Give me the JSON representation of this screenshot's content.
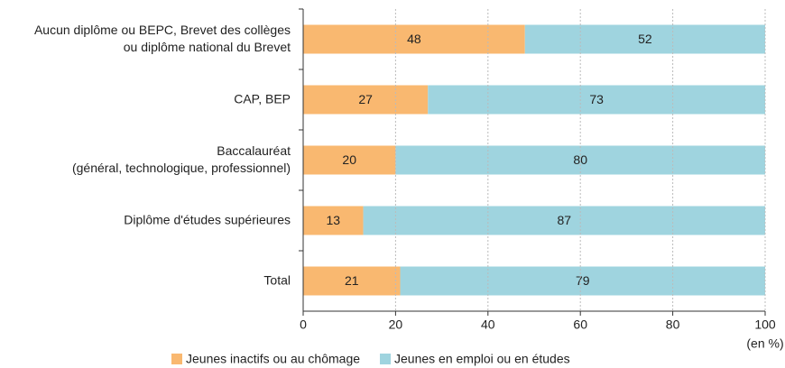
{
  "chart_data": {
    "type": "stacked_barh",
    "categories": [
      "Aucun diplôme ou BEPC, Brevet des collèges\nou diplôme national du Brevet",
      "CAP, BEP",
      "Baccalauréat\n(général, technologique, professionnel)",
      "Diplôme d'études supérieures",
      "Total"
    ],
    "series": [
      {
        "name": "Jeunes inactifs ou au chômage",
        "color": "#f9b870",
        "values": [
          48,
          27,
          20,
          13,
          21
        ]
      },
      {
        "name": "Jeunes en emploi ou en études",
        "color": "#9fd4df",
        "values": [
          52,
          73,
          80,
          87,
          79
        ]
      }
    ],
    "xlim": [
      0,
      100
    ],
    "xticks": [
      0,
      20,
      40,
      60,
      80,
      100
    ],
    "xlabel": "(en %)",
    "grid": true,
    "legend": "bottom"
  }
}
